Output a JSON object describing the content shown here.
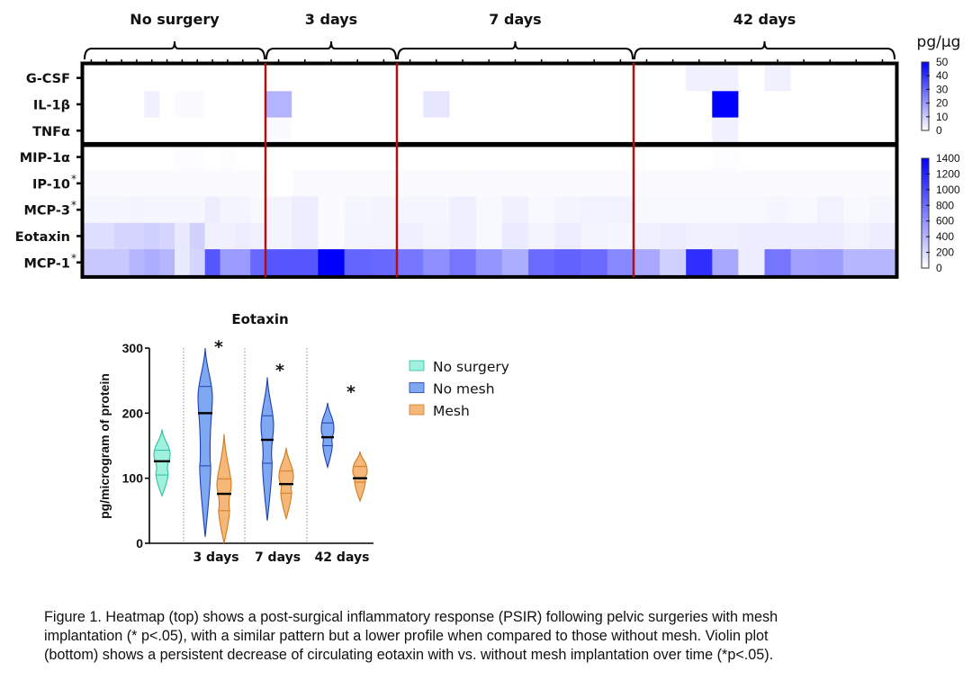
{
  "chart_data": [
    {
      "type": "heatmap",
      "title": "",
      "colorscale": [
        "#ffffff",
        "#0000ff"
      ],
      "unit_label": "pg/µg",
      "groups": [
        {
          "label": "No surgery",
          "n_cols": 12
        },
        {
          "label": "3 days",
          "n_cols": 5
        },
        {
          "label": "7 days",
          "n_cols": 9
        },
        {
          "label": "42 days",
          "n_cols": 10
        }
      ],
      "rows": [
        {
          "label": "G-CSF",
          "star": false,
          "scale": 0
        },
        {
          "label": "IL-1β",
          "star": false,
          "scale": 0
        },
        {
          "label": "TNFα",
          "star": false,
          "scale": 0
        },
        {
          "label": "MIP-1α",
          "star": false,
          "scale": 1
        },
        {
          "label": "IP-10",
          "star": true,
          "scale": 1
        },
        {
          "label": "MCP-3",
          "star": true,
          "scale": 1
        },
        {
          "label": "Eotaxin",
          "star": false,
          "scale": 1
        },
        {
          "label": "MCP-1",
          "star": true,
          "scale": 1
        }
      ],
      "colorbars": [
        {
          "min": 0,
          "max": 50,
          "ticks": [
            "50",
            "40",
            "30",
            "20",
            "10",
            "0"
          ]
        },
        {
          "min": 0,
          "max": 1400,
          "ticks": [
            "1400",
            "1200",
            "1000",
            "800",
            "600",
            "400",
            "200",
            "0"
          ]
        }
      ],
      "values": [
        [
          0,
          0,
          0,
          0,
          0,
          0,
          0,
          0,
          0,
          0,
          0,
          0,
          0,
          0,
          0,
          0,
          0,
          0,
          0,
          0,
          0,
          0,
          0,
          0,
          0,
          0,
          0,
          0,
          3,
          3,
          0,
          3,
          0,
          0,
          0,
          0
        ],
        [
          0,
          0,
          0,
          0,
          3,
          0,
          1,
          1,
          0,
          0,
          0,
          0,
          15,
          0,
          0,
          0,
          0,
          0,
          5,
          0,
          0,
          0,
          0,
          0,
          0,
          0,
          0,
          0,
          0,
          50,
          0,
          0,
          0,
          0,
          0,
          0
        ],
        [
          0,
          0,
          0,
          0,
          0,
          0,
          0,
          0,
          0,
          0,
          0,
          0,
          1,
          0,
          0,
          0,
          0,
          0,
          0,
          0,
          0,
          0,
          0,
          0,
          0,
          0,
          0,
          0,
          0,
          3,
          0,
          0,
          0,
          0,
          0,
          0
        ],
        [
          0,
          0,
          0,
          0,
          0,
          0,
          10,
          10,
          0,
          10,
          0,
          0,
          0,
          0,
          0,
          0,
          0,
          0,
          0,
          0,
          0,
          0,
          0,
          0,
          0,
          0,
          0,
          0,
          0,
          10,
          0,
          0,
          0,
          0,
          0,
          0
        ],
        [
          20,
          20,
          20,
          20,
          20,
          20,
          30,
          30,
          20,
          20,
          20,
          20,
          0,
          30,
          30,
          20,
          20,
          20,
          30,
          20,
          30,
          20,
          20,
          20,
          20,
          20,
          20,
          20,
          20,
          20,
          20,
          20,
          20,
          20,
          20,
          20
        ],
        [
          50,
          50,
          50,
          60,
          50,
          50,
          50,
          50,
          100,
          60,
          60,
          40,
          60,
          100,
          30,
          50,
          60,
          50,
          50,
          90,
          40,
          80,
          40,
          60,
          70,
          70,
          40,
          40,
          40,
          40,
          40,
          50,
          40,
          70,
          40,
          50
        ],
        [
          180,
          180,
          230,
          230,
          260,
          230,
          120,
          250,
          80,
          80,
          100,
          80,
          60,
          100,
          20,
          60,
          60,
          90,
          60,
          90,
          40,
          110,
          60,
          100,
          60,
          50,
          80,
          100,
          80,
          80,
          100,
          100,
          100,
          100,
          70,
          100
        ],
        [
          300,
          300,
          300,
          400,
          450,
          400,
          120,
          230,
          930,
          550,
          550,
          830,
          930,
          930,
          1400,
          850,
          830,
          750,
          620,
          760,
          580,
          450,
          810,
          860,
          820,
          650,
          480,
          250,
          1150,
          480,
          100,
          760,
          520,
          540,
          400,
          400
        ]
      ]
    },
    {
      "type": "violin",
      "title": "Eotaxin",
      "xlabel": "",
      "ylabel": "pg/microgram of protein",
      "ylim": [
        0,
        300
      ],
      "yticks": [
        "0",
        "100",
        "200",
        "300"
      ],
      "categories": [
        "",
        "3 days",
        "7 days",
        "42 days"
      ],
      "legend_position": "right",
      "series": [
        {
          "name": "No surgery",
          "color": "#9ff0dc",
          "stroke": "#2fbfa0"
        },
        {
          "name": "No mesh",
          "color": "#7ea9f2",
          "stroke": "#1f3fb0"
        },
        {
          "name": "Mesh",
          "color": "#f5b878",
          "stroke": "#d07a22"
        }
      ],
      "violins": [
        {
          "group": 0,
          "series": "No surgery",
          "min": 73,
          "max": 175,
          "median": 126,
          "q1": 105,
          "q3": 143,
          "significant": false
        },
        {
          "group": 1,
          "series": "No mesh",
          "min": 10,
          "max": 300,
          "median": 200,
          "q1": 119,
          "q3": 241,
          "significant": true
        },
        {
          "group": 1,
          "series": "Mesh",
          "min": 0,
          "max": 168,
          "median": 76,
          "q1": 50,
          "q3": 99,
          "significant": false
        },
        {
          "group": 2,
          "series": "No mesh",
          "min": 35,
          "max": 255,
          "median": 159,
          "q1": 123,
          "q3": 196,
          "significant": true
        },
        {
          "group": 2,
          "series": "Mesh",
          "min": 38,
          "max": 147,
          "median": 91,
          "q1": 77,
          "q3": 111,
          "significant": false
        },
        {
          "group": 3,
          "series": "No mesh",
          "min": 117,
          "max": 216,
          "median": 163,
          "q1": 150,
          "q3": 185,
          "significant": true
        },
        {
          "group": 3,
          "series": "Mesh",
          "min": 65,
          "max": 141,
          "median": 100,
          "q1": 94,
          "q3": 118,
          "significant": false
        }
      ],
      "annotation": "*"
    }
  ],
  "caption": {
    "lines": [
      "Figure 1. Heatmap (top) shows a post-surgical inflammatory response (PSIR) following pelvic surgeries with mesh",
      "implantation (* p<.05), with a similar pattern but a lower profile when compared to those without mesh. Violin plot",
      "(bottom) shows a persistent decrease of circulating eotaxin with vs. without mesh implantation over time (*p<.05)."
    ]
  }
}
